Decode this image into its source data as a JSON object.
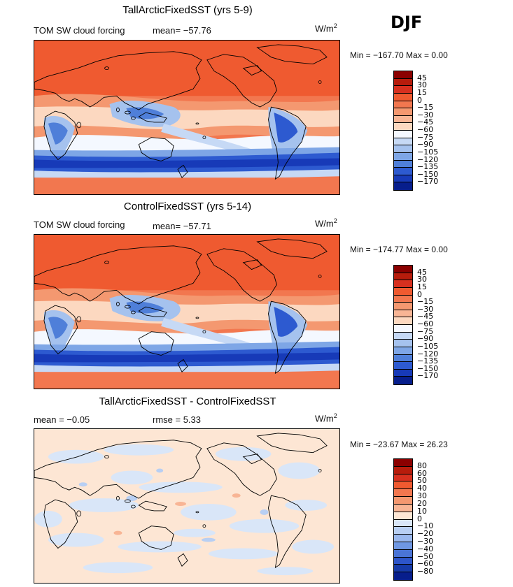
{
  "season": "DJF",
  "units_base": "W/m",
  "units_exp": "2",
  "panels": [
    {
      "title": "TallArcticFixedSST (yrs 5-9)",
      "variable": "TOM SW cloud forcing",
      "stat_text": "mean= −57.76",
      "minmax_text": "Min = −167.70  Max =    0.00",
      "colorbar_labels": [
        "45",
        "30",
        "15",
        "0",
        "−15",
        "−30",
        "−45",
        "−60",
        "−75",
        "−90",
        "−105",
        "−120",
        "−135",
        "−150",
        "−170"
      ]
    },
    {
      "title": "ControlFixedSST (yrs 5-14)",
      "variable": "TOM SW cloud forcing",
      "stat_text": "mean= −57.71",
      "minmax_text": "Min = −174.77  Max =    0.00",
      "colorbar_labels": [
        "45",
        "30",
        "15",
        "0",
        "−15",
        "−30",
        "−45",
        "−60",
        "−75",
        "−90",
        "−105",
        "−120",
        "−135",
        "−150",
        "−170"
      ]
    },
    {
      "title": "TallArcticFixedSST - ControlFixedSST",
      "mean_text": "mean =   −0.05",
      "rmse_text": "rmse =    5.33",
      "minmax_text": "Min = −23.67  Max =   26.23",
      "colorbar_labels": [
        "80",
        "60",
        "50",
        "40",
        "30",
        "20",
        "10",
        "0",
        "−10",
        "−20",
        "−30",
        "−40",
        "−50",
        "−60",
        "−80"
      ]
    }
  ],
  "colors": {
    "field_scale": [
      "#8b0000",
      "#b71c0c",
      "#d7301f",
      "#ef5a30",
      "#f2774f",
      "#f49870",
      "#f8b595",
      "#fcd8c0",
      "#f4f8ff",
      "#c6d9f5",
      "#a5c2ee",
      "#7ea6e6",
      "#4f7fd9",
      "#2d5ad0",
      "#173ab8",
      "#071e8c"
    ],
    "diff_scale": [
      "#8b0000",
      "#b71c0c",
      "#d7301f",
      "#ef5a30",
      "#f2774f",
      "#f49870",
      "#f8b595",
      "#fde6d4",
      "#d9e6f8",
      "#b8cff3",
      "#9ab8ee",
      "#6f97e2",
      "#4a74d6",
      "#2d55c9",
      "#163aa8",
      "#071e8c"
    ]
  },
  "chart_data": [
    {
      "type": "heatmap",
      "title": "TallArcticFixedSST (yrs 5-9)",
      "subtitle": "TOM SW cloud forcing",
      "season": "DJF",
      "units": "W/m^2",
      "mean": -57.76,
      "min": -167.7,
      "max": 0.0,
      "contour_levels": [
        45,
        30,
        15,
        0,
        -15,
        -30,
        -45,
        -60,
        -75,
        -90,
        -105,
        -120,
        -135,
        -150,
        -170
      ],
      "projection": "cylindrical equidistant, Pacific-centred"
    },
    {
      "type": "heatmap",
      "title": "ControlFixedSST (yrs 5-14)",
      "subtitle": "TOM SW cloud forcing",
      "season": "DJF",
      "units": "W/m^2",
      "mean": -57.71,
      "min": -174.77,
      "max": 0.0,
      "contour_levels": [
        45,
        30,
        15,
        0,
        -15,
        -30,
        -45,
        -60,
        -75,
        -90,
        -105,
        -120,
        -135,
        -150,
        -170
      ],
      "projection": "cylindrical equidistant, Pacific-centred"
    },
    {
      "type": "heatmap",
      "title": "TallArcticFixedSST - ControlFixedSST",
      "season": "DJF",
      "units": "W/m^2",
      "mean": -0.05,
      "rmse": 5.33,
      "min": -23.67,
      "max": 26.23,
      "contour_levels": [
        80,
        60,
        50,
        40,
        30,
        20,
        10,
        0,
        -10,
        -20,
        -30,
        -40,
        -50,
        -60,
        -80
      ],
      "projection": "cylindrical equidistant, Pacific-centred"
    }
  ]
}
